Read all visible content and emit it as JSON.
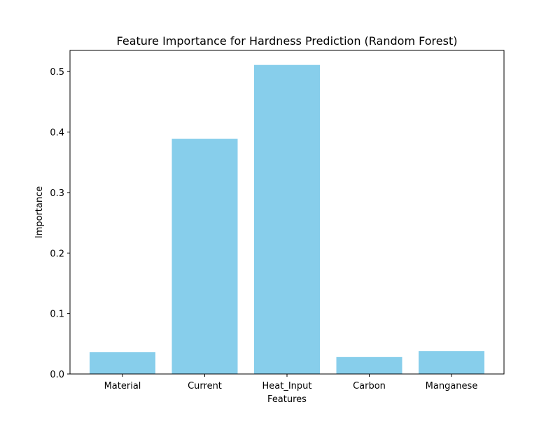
{
  "chart_data": {
    "type": "bar",
    "title": "Feature Importance for Hardness Prediction (Random Forest)",
    "xlabel": "Features",
    "ylabel": "Importance",
    "categories": [
      "Material",
      "Current",
      "Heat_Input",
      "Carbon",
      "Manganese"
    ],
    "values": [
      0.036,
      0.389,
      0.511,
      0.028,
      0.038
    ],
    "ylim": [
      0,
      0.535
    ],
    "yticks": [
      0.0,
      0.1,
      0.2,
      0.3,
      0.4,
      0.5
    ],
    "ytick_labels": [
      "0.0",
      "0.1",
      "0.2",
      "0.3",
      "0.4",
      "0.5"
    ],
    "bar_color": "#87ceeb",
    "grid": false,
    "legend": "none"
  }
}
